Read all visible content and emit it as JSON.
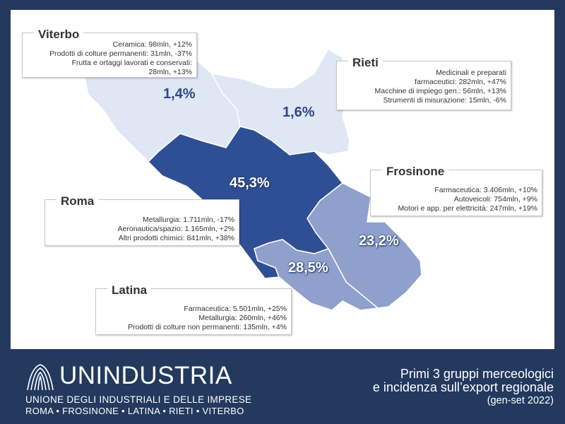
{
  "colors": {
    "background": "#23395e",
    "roma": "#2f4f95",
    "latina_frosinone": "#8ea0cb",
    "viterbo_rieti": "#dfe6f4"
  },
  "regions": [
    {
      "name": "Viterbo",
      "share": "1,4%",
      "items": [
        "Ceramica: 98mln, +12%",
        "Prodotti di colture permanenti: 31mln, -37%",
        "Frutta e ortaggi lavorati e conservati:",
        "28mln, +13%"
      ]
    },
    {
      "name": "Rieti",
      "share": "1,6%",
      "items": [
        "Medicinali e preparati",
        "farmaceutici: 282mln, +47%",
        "Macchine di impiego gen.: 56mln, +13%",
        "Strumenti di misurazione: 15mln, -6%"
      ]
    },
    {
      "name": "Roma",
      "share": "45,3%",
      "items": [
        "Metallurgia: 1.711mln, -17%",
        "Aeronautica/spazio: 1.165mln, +2%",
        "Altri prodotti chimici: 841mln, +38%"
      ]
    },
    {
      "name": "Frosinone",
      "share": "23,2%",
      "items": [
        "Farmaceutica: 3.406mln, +10%",
        "Autoveicoli: 754mln, +9%",
        "Motori e app. per elettricità: 247mln, +19%"
      ]
    },
    {
      "name": "Latina",
      "share": "28,5%",
      "items": [
        "Farmaceutica: 5.501mln, +25%",
        "Metallurgia: 260mln, +46%",
        "Prodotti di colture non permanenti: 135mln, +4%"
      ]
    }
  ],
  "footer": {
    "logo_text": "UNINDUSTRIA",
    "logo_subtitle": "UNIONE DEGLI INDUSTRIALI E DELLE IMPRESE",
    "logo_cities": "ROMA • FROSINONE • LATINA • RIETI • VITERBO",
    "caption_line1": "Primi 3 gruppi merceologici",
    "caption_line2": "e incidenza sull’export regionale",
    "caption_line3": "(gen-set 2022)"
  },
  "icons": {
    "logo": "unindustria-logo-icon"
  }
}
